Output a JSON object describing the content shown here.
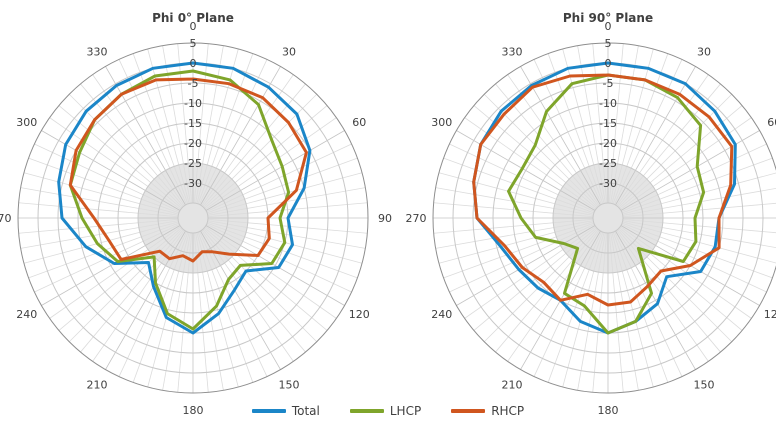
{
  "colors": {
    "Total": "#1b86c8",
    "LHCP": "#7fa52b",
    "RHCP": "#d0561f"
  },
  "chart_data": [
    {
      "type": "polar-line",
      "title": "Phi 0° Plane",
      "angle_labels": [
        "0",
        "30",
        "60",
        "90",
        "120",
        "150",
        "180",
        "210",
        "240",
        "270",
        "300",
        "330"
      ],
      "radial_labels": [
        "5",
        "0",
        "-5",
        "-10",
        "-15",
        "-20",
        "-25",
        "-30"
      ],
      "rlim": [
        -35,
        5
      ],
      "grid": true,
      "angles": [
        0,
        15,
        30,
        45,
        60,
        75,
        90,
        105,
        120,
        135,
        150,
        165,
        180,
        195,
        210,
        225,
        240,
        255,
        270,
        285,
        300,
        315,
        330,
        345
      ],
      "series": [
        {
          "name": "Total",
          "values": [
            0,
            0,
            -1,
            -2,
            -5,
            -10,
            -15,
            -13,
            -14,
            -20,
            -18,
            -14,
            -10,
            -13,
            -19,
            -23,
            -16,
            -11,
            -6,
            -4,
            -2,
            -1,
            -0.5,
            0
          ]
        },
        {
          "name": "LHCP",
          "values": [
            -2,
            -3,
            -6,
            -11,
            -13,
            -14,
            -17,
            -15,
            -16,
            -22,
            -21,
            -16,
            -11,
            -14,
            -20,
            -25,
            -17,
            -14,
            -11,
            -7,
            -6,
            -4,
            -3,
            -2
          ]
        },
        {
          "name": "RHCP",
          "values": [
            -4,
            -4,
            -4,
            -5,
            -6,
            -12,
            -20,
            -19,
            -20,
            -26,
            -29,
            -30,
            -28,
            -29,
            -27,
            -27,
            -18,
            -17,
            -14,
            -7,
            -5,
            -4,
            -3,
            -3
          ]
        }
      ]
    },
    {
      "type": "polar-line",
      "title": "Phi 90° Plane",
      "angle_labels": [
        "0",
        "30",
        "60",
        "90",
        "120",
        "150",
        "180",
        "210",
        "240",
        "270",
        "300",
        "330"
      ],
      "radial_labels": [
        "5",
        "0",
        "-5",
        "-10",
        "-15",
        "-20",
        "-25",
        "-30"
      ],
      "rlim": [
        -35,
        5
      ],
      "grid": true,
      "angles": [
        0,
        15,
        30,
        45,
        60,
        75,
        90,
        105,
        120,
        135,
        150,
        165,
        180,
        195,
        210,
        225,
        240,
        255,
        270,
        285,
        300,
        315,
        330,
        345
      ],
      "series": [
        {
          "name": "Total",
          "values": [
            0,
            0,
            0,
            -1,
            -2,
            -6,
            -11,
            -11,
            -12,
            -18,
            -14,
            -12,
            -10,
            -12,
            -15,
            -14,
            -13,
            -11,
            -6,
            -4,
            -2,
            -1,
            -0.5,
            0
          ]
        },
        {
          "name": "LHCP",
          "values": [
            -3,
            -3,
            -4,
            -6,
            -13,
            -14,
            -17,
            -16,
            -17,
            -28,
            -17,
            -12,
            -10,
            -16,
            -17,
            -28,
            -26,
            -20,
            -17,
            -13,
            -14,
            -13,
            -8,
            -4
          ]
        },
        {
          "name": "RHCP",
          "values": [
            -3,
            -3,
            -3,
            -3,
            -3,
            -7,
            -11,
            -10,
            -15,
            -20,
            -19,
            -17,
            -17,
            -19,
            -15,
            -16,
            -14,
            -12,
            -6,
            -4,
            -2,
            -2,
            -1,
            -2
          ]
        }
      ]
    }
  ],
  "legend": {
    "items": [
      "Total",
      "LHCP",
      "RHCP"
    ]
  }
}
